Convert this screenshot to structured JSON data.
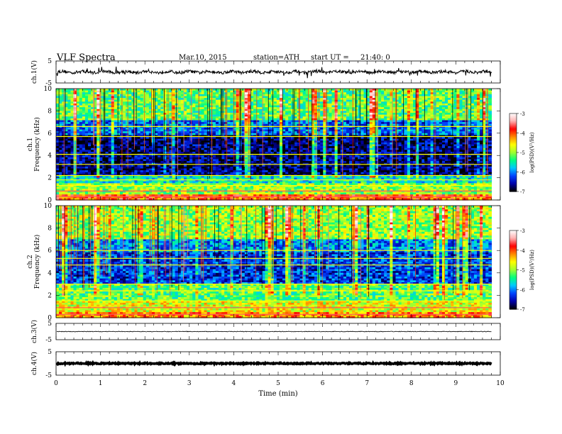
{
  "header": {
    "title": "VLF  Spectra",
    "date": "Mar.10, 2015",
    "station": "station=ATH",
    "start_label": "start  UT  =",
    "start_time": "21:40: 0"
  },
  "colors": {
    "colormap": [
      "#000000",
      "#0000aa",
      "#0044ff",
      "#00c8ff",
      "#00ff80",
      "#a0ff30",
      "#ffff00",
      "#ff8800",
      "#ff0000",
      "#ffb0b0",
      "#ffffff"
    ],
    "trace": "#000000"
  },
  "chart_data": {
    "type": "heatmap",
    "time_axis": {
      "label": "Time  (min)",
      "range": [
        0,
        10
      ],
      "ticks": [
        "0",
        "1",
        "2",
        "3",
        "4",
        "5",
        "6",
        "7",
        "8",
        "9",
        "10"
      ],
      "data_end": 9.8
    },
    "panels": [
      {
        "id": "ch1_waveform",
        "type": "line",
        "ylabel": "ch.1(V)",
        "ylim": [
          -5,
          5
        ],
        "yticks": [
          "5",
          "-5"
        ],
        "baseline": 0
      },
      {
        "id": "ch1_spectrogram",
        "type": "heatmap",
        "ylabel_channel": "ch.1",
        "ylabel": "Frequency  (kHz)",
        "ylim": [
          0,
          10
        ],
        "yticks": [
          "10",
          "8",
          "6",
          "4",
          "2",
          "0"
        ],
        "colorbar": {
          "label": "log(PSD)(V²/Hz)",
          "range": [
            -7,
            -3
          ],
          "ticks": [
            "-3",
            "-4",
            "-5",
            "-6",
            "-7"
          ]
        },
        "bands": [
          {
            "from": 0.0,
            "to": 0.5,
            "level": -4.0
          },
          {
            "from": 0.5,
            "to": 1.5,
            "level": -5.0
          },
          {
            "from": 1.5,
            "to": 2.2,
            "level": -5.6
          },
          {
            "from": 2.2,
            "to": 5.8,
            "level": -6.7
          },
          {
            "from": 5.8,
            "to": 7.2,
            "level": -6.1
          },
          {
            "from": 7.2,
            "to": 10.0,
            "level": -5.2
          }
        ],
        "lines_khz": [
          0.3,
          0.8,
          1.3,
          1.8,
          2.2,
          3.2,
          4.1,
          5.7,
          6.6
        ]
      },
      {
        "id": "ch2_spectrogram",
        "type": "heatmap",
        "ylabel_channel": "ch.2",
        "ylabel": "Frequency  (kHz)",
        "ylim": [
          0,
          10
        ],
        "yticks": [
          "10",
          "8",
          "6",
          "4",
          "2",
          "0"
        ],
        "colorbar": {
          "label": "log(PSD)(V²/Hz)",
          "range": [
            -7,
            -3
          ],
          "ticks": [
            "-3",
            "-4",
            "-5",
            "-6",
            "-7"
          ]
        },
        "bands": [
          {
            "from": 0.0,
            "to": 0.5,
            "level": -4.2
          },
          {
            "from": 0.5,
            "to": 1.5,
            "level": -4.7
          },
          {
            "from": 1.5,
            "to": 3.0,
            "level": -5.2
          },
          {
            "from": 3.0,
            "to": 5.8,
            "level": -6.3
          },
          {
            "from": 5.8,
            "to": 7.0,
            "level": -6.0
          },
          {
            "from": 7.0,
            "to": 10.0,
            "level": -5.0
          }
        ],
        "lines_khz": [
          0.3,
          0.9,
          1.5,
          2.4,
          3.0,
          4.7,
          5.3,
          6.0
        ]
      },
      {
        "id": "ch3_waveform",
        "type": "line",
        "ylabel": "ch.3(V)",
        "ylim": [
          -5,
          5
        ],
        "yticks": [
          "5",
          "-5"
        ],
        "baseline": 0
      },
      {
        "id": "ch4_waveform",
        "type": "line",
        "ylabel": "ch.4(V)",
        "ylim": [
          -5,
          5
        ],
        "yticks": [
          "5",
          "-5"
        ],
        "baseline": 0
      }
    ]
  }
}
